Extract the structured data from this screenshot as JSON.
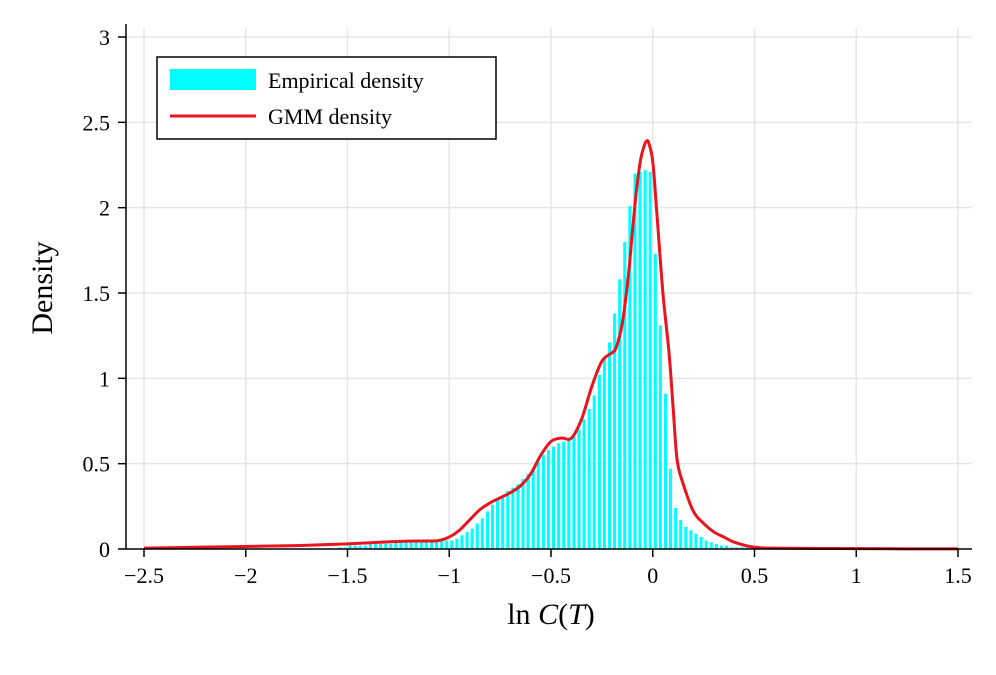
{
  "chart_data": {
    "type": "bar",
    "title": "",
    "xlabel": "ln C(T)",
    "ylabel": "Density",
    "xlim": [
      -2.5,
      1.5
    ],
    "ylim": [
      0,
      3.05
    ],
    "xticks": [
      -2.5,
      -2,
      -1.5,
      -1,
      -0.5,
      0,
      0.5,
      1,
      1.5
    ],
    "xtick_labels": [
      "−2.5",
      "−2",
      "−1.5",
      "−1",
      "−0.5",
      "0",
      "0.5",
      "1",
      "1.5"
    ],
    "yticks": [
      0,
      0.5,
      1,
      1.5,
      2,
      2.5,
      3
    ],
    "ytick_labels": [
      "0",
      "0.5",
      "1",
      "1.5",
      "2",
      "2.5",
      "3"
    ],
    "grid": true,
    "legend_position": "top-left",
    "series": [
      {
        "name": "Empirical density",
        "kind": "histogram",
        "color": "#00ffff",
        "bin_width": 0.025,
        "bin_centers": [
          -1.5375,
          -1.5125,
          -1.4875,
          -1.4625,
          -1.4375,
          -1.4125,
          -1.3875,
          -1.3625,
          -1.3375,
          -1.3125,
          -1.2875,
          -1.2625,
          -1.2375,
          -1.2125,
          -1.1875,
          -1.1625,
          -1.1375,
          -1.1125,
          -1.0875,
          -1.0625,
          -1.0375,
          -1.0125,
          -0.9875,
          -0.9625,
          -0.9375,
          -0.9125,
          -0.8875,
          -0.8625,
          -0.8375,
          -0.8125,
          -0.7875,
          -0.7625,
          -0.7375,
          -0.7125,
          -0.6875,
          -0.6625,
          -0.6375,
          -0.6125,
          -0.5875,
          -0.5625,
          -0.5375,
          -0.5125,
          -0.4875,
          -0.4625,
          -0.4375,
          -0.4125,
          -0.3875,
          -0.3625,
          -0.3375,
          -0.3125,
          -0.2875,
          -0.2625,
          -0.2375,
          -0.2125,
          -0.1875,
          -0.1625,
          -0.1375,
          -0.1125,
          -0.0875,
          -0.0625,
          -0.0375,
          -0.0125,
          0.0125,
          0.0375,
          0.0625,
          0.0875,
          0.1125,
          0.1375,
          0.1625,
          0.1875,
          0.2125,
          0.2375,
          0.2625,
          0.2875,
          0.3125,
          0.3375,
          0.3625,
          0.3875,
          0.4125,
          0.4375,
          0.4625
        ],
        "values": [
          0.01,
          0.01,
          0.02,
          0.02,
          0.02,
          0.02,
          0.03,
          0.03,
          0.03,
          0.03,
          0.03,
          0.04,
          0.04,
          0.04,
          0.04,
          0.04,
          0.04,
          0.04,
          0.05,
          0.05,
          0.05,
          0.05,
          0.05,
          0.06,
          0.08,
          0.1,
          0.12,
          0.15,
          0.18,
          0.22,
          0.26,
          0.29,
          0.31,
          0.34,
          0.36,
          0.38,
          0.41,
          0.44,
          0.47,
          0.51,
          0.55,
          0.58,
          0.6,
          0.62,
          0.63,
          0.64,
          0.66,
          0.7,
          0.76,
          0.82,
          0.9,
          1.02,
          1.12,
          1.21,
          1.38,
          1.58,
          1.8,
          2.01,
          2.2,
          2.21,
          2.22,
          2.21,
          1.73,
          1.31,
          0.91,
          0.47,
          0.24,
          0.17,
          0.13,
          0.11,
          0.09,
          0.07,
          0.05,
          0.04,
          0.03,
          0.02,
          0.02,
          0.01,
          0.01,
          0.01,
          0.01
        ]
      },
      {
        "name": "GMM density",
        "kind": "line",
        "color": "#e8141e",
        "x": [
          -2.5,
          -2.25,
          -2.0,
          -1.75,
          -1.5,
          -1.4,
          -1.3,
          -1.2,
          -1.1,
          -1.05,
          -1.0,
          -0.95,
          -0.9,
          -0.85,
          -0.8,
          -0.75,
          -0.7,
          -0.65,
          -0.6,
          -0.55,
          -0.5,
          -0.45,
          -0.4,
          -0.35,
          -0.3,
          -0.25,
          -0.2,
          -0.18,
          -0.15,
          -0.12,
          -0.1,
          -0.08,
          -0.06,
          -0.04,
          -0.03,
          -0.02,
          0.0,
          0.02,
          0.05,
          0.08,
          0.1,
          0.12,
          0.15,
          0.2,
          0.25,
          0.3,
          0.35,
          0.4,
          0.5,
          0.6,
          0.8,
          1.0,
          1.25,
          1.5
        ],
        "y": [
          0.005,
          0.01,
          0.015,
          0.02,
          0.03,
          0.036,
          0.042,
          0.046,
          0.047,
          0.05,
          0.07,
          0.11,
          0.17,
          0.23,
          0.27,
          0.3,
          0.33,
          0.37,
          0.44,
          0.55,
          0.63,
          0.65,
          0.65,
          0.76,
          0.95,
          1.1,
          1.15,
          1.18,
          1.32,
          1.6,
          1.86,
          2.1,
          2.28,
          2.37,
          2.39,
          2.38,
          2.27,
          1.97,
          1.5,
          1.15,
          0.83,
          0.52,
          0.38,
          0.22,
          0.15,
          0.1,
          0.07,
          0.04,
          0.01,
          0.005,
          0.003,
          0.002,
          0.001,
          0.001
        ]
      }
    ]
  }
}
